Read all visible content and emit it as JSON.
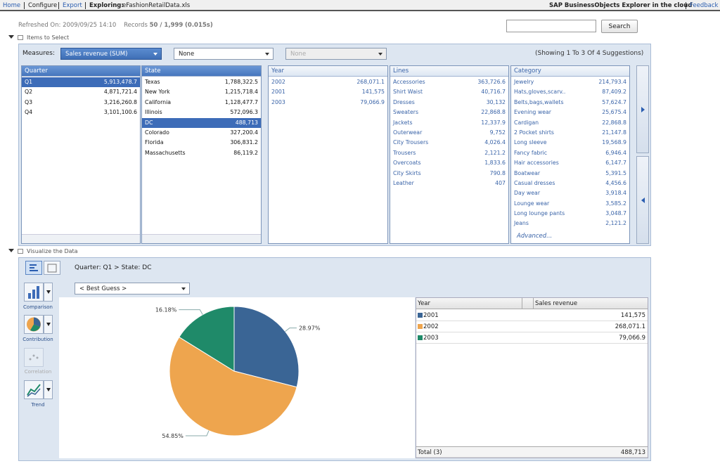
{
  "topbar": {
    "links": [
      "Home",
      "Configure",
      "Export"
    ],
    "exploring_label": "Exploring:",
    "file": "eFashionRetailData.xls",
    "brand": "SAP BusinessObjects Explorer in the cloud",
    "feedback": "Feedback"
  },
  "status": {
    "refreshed": "Refreshed On: 2009/09/25 14:10",
    "records_label": "Records",
    "records": "50 / 1,999",
    "time": "(0.015s)"
  },
  "search": {
    "button": "Search"
  },
  "items": {
    "title": "Items to Select",
    "measures_label": "Measures:",
    "measure": "Sales revenue (SUM)",
    "second": "None",
    "third": "None",
    "showing": "(Showing 1 To 3 Of 4 Suggestions)",
    "advanced": "Advanced...",
    "facets": [
      {
        "title": "Quarter",
        "rows": [
          [
            "Q1",
            "5,913,478.7"
          ],
          [
            "Q2",
            "4,871,721.4"
          ],
          [
            "Q3",
            "3,216,260.8"
          ],
          [
            "Q4",
            "3,101,100.6"
          ]
        ]
      },
      {
        "title": "State",
        "rows": [
          [
            "Texas",
            "1,788,322.5"
          ],
          [
            "New York",
            "1,215,718.4"
          ],
          [
            "California",
            "1,128,477.7"
          ],
          [
            "Illinois",
            "572,096.3"
          ],
          [
            "DC",
            "488,713"
          ],
          [
            "Colorado",
            "327,200.4"
          ],
          [
            "Florida",
            "306,831.2"
          ],
          [
            "Massachusetts",
            "86,119.2"
          ]
        ]
      },
      {
        "title": "Year",
        "rows": [
          [
            "2002",
            "268,071.1"
          ],
          [
            "2001",
            "141,575"
          ],
          [
            "2003",
            "79,066.9"
          ]
        ]
      },
      {
        "title": "Lines",
        "rows": [
          [
            "Accessories",
            "363,726.6"
          ],
          [
            "Shirt Waist",
            "40,716.7"
          ],
          [
            "Dresses",
            "30,132"
          ],
          [
            "Sweaters",
            "22,868.8"
          ],
          [
            "Jackets",
            "12,337.9"
          ],
          [
            "Outerwear",
            "9,752"
          ],
          [
            "City Trousers",
            "4,026.4"
          ],
          [
            "Trousers",
            "2,121.2"
          ],
          [
            "Overcoats",
            "1,833.6"
          ],
          [
            "City Skirts",
            "790.8"
          ],
          [
            "Leather",
            "407"
          ]
        ]
      },
      {
        "title": "Category",
        "rows": [
          [
            "Jewelry",
            "214,793.4"
          ],
          [
            "Hats,gloves,scarv..",
            "87,409.2"
          ],
          [
            "Belts,bags,wallets",
            "57,624.7"
          ],
          [
            "Evening wear",
            "25,675.4"
          ],
          [
            "Cardigan",
            "22,868.8"
          ],
          [
            "2 Pocket shirts",
            "21,147.8"
          ],
          [
            "Long sleeve",
            "19,568.9"
          ],
          [
            "Fancy fabric",
            "6,946.4"
          ],
          [
            "Hair accessories",
            "6,147.7"
          ],
          [
            "Boatwear",
            "5,391.5"
          ],
          [
            "Casual dresses",
            "4,456.6"
          ],
          [
            "Day wear",
            "3,918.4"
          ],
          [
            "Lounge wear",
            "3,585.2"
          ],
          [
            "Long lounge pants",
            "3,048.7"
          ],
          [
            "Jeans",
            "2,121.2"
          ]
        ]
      }
    ]
  },
  "visualize": {
    "title": "Visualize the Data",
    "breadcrumb": "Quarter: Q1 > State: DC",
    "chart_types": [
      "Comparison",
      "Contribution",
      "Correlation",
      "Trend"
    ],
    "chart_picker": "< Best Guess >"
  },
  "chart_data": {
    "type": "pie",
    "values": [
      28.97,
      54.85,
      16.18
    ],
    "value_labels": [
      "28.97%",
      "54.85%",
      "16.18%"
    ],
    "colors": [
      "#3a6595",
      "#eea54e",
      "#1f8a69"
    ]
  },
  "table": {
    "header": [
      "Year",
      "Sales revenue"
    ],
    "rows": [
      [
        "2001",
        "141,575"
      ],
      [
        "2002",
        "268,071.1"
      ],
      [
        "2003",
        "79,066.9"
      ]
    ],
    "total": [
      "Total (3)",
      "488,713"
    ]
  }
}
